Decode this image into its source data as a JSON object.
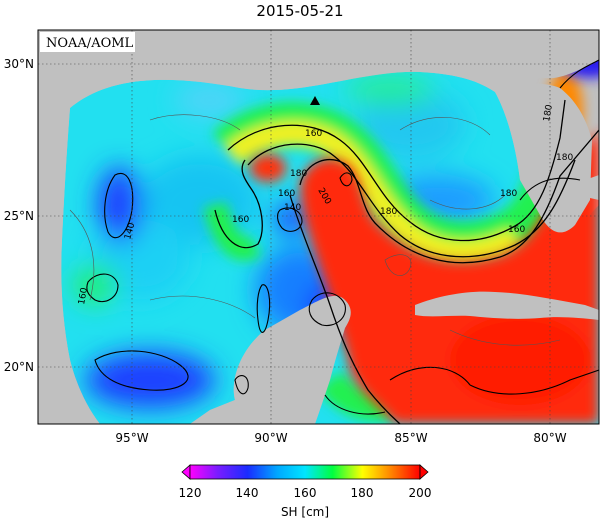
{
  "title": "2015-05-21",
  "source_label": "NOAA/AOML",
  "lat_labels": [
    "30°N",
    "25°N",
    "20°N"
  ],
  "lon_labels": [
    "95°W",
    "90°W",
    "85°W",
    "80°W"
  ],
  "contour_labels": [
    "160",
    "180",
    "160",
    "180",
    "200",
    "160",
    "140",
    "180",
    "160",
    "140",
    "180",
    "160",
    "180"
  ],
  "colorbar": {
    "ticks": [
      "120",
      "140",
      "160",
      "180",
      "200"
    ],
    "label": "SH [cm]",
    "min": 120,
    "max": 200
  },
  "chart_data": {
    "type": "heatmap",
    "title": "2015-05-21",
    "variable": "SH [cm]",
    "lon_range": [
      -98,
      -78
    ],
    "lat_range": [
      18.5,
      31
    ],
    "value_range": [
      120,
      200
    ],
    "marker": {
      "symbol": "triangle",
      "lon": -88.3,
      "lat": 28.8
    }
  },
  "colors": {
    "land": "#c0c0c0",
    "v120": "#ff00ff",
    "v140": "#1a2cff",
    "v160": "#00e5ff",
    "v170": "#00ff40",
    "v180": "#ffff00",
    "v190": "#ff8800",
    "v200": "#ff0000"
  }
}
